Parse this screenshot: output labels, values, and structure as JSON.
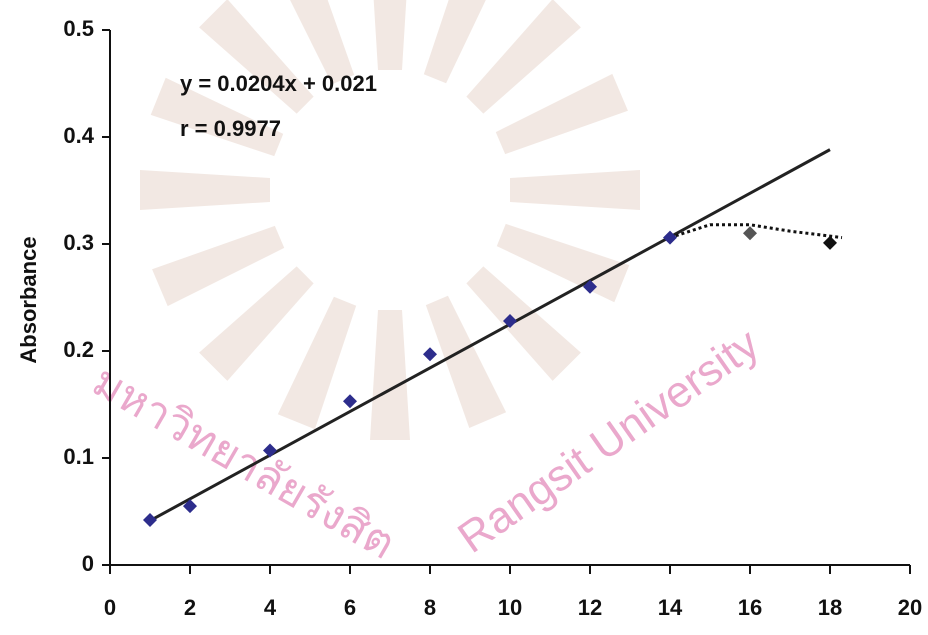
{
  "chart_data": {
    "type": "scatter",
    "y_label": "Absorbance",
    "annotations": [
      "y = 0.0204x + 0.021",
      "r = 0.9977"
    ],
    "watermark": [
      "มหาวิทยาลัยรังสิต",
      "Rangsit University"
    ],
    "x": [
      1,
      2,
      4,
      6,
      8,
      10,
      12,
      14,
      16,
      18
    ],
    "values": [
      0.042,
      0.055,
      0.107,
      0.153,
      0.197,
      0.228,
      0.26,
      0.306,
      0.31,
      0.301
    ],
    "colors": [
      "#2d2d8c",
      "#2d2d8c",
      "#2d2d8c",
      "#2d2d8c",
      "#2d2d8c",
      "#2d2d8c",
      "#2d2d8c",
      "#2d2d8c",
      "#555555",
      "#111111"
    ],
    "trendline": {
      "slope": 0.0204,
      "intercept": 0.021,
      "color": "#222222"
    },
    "curve": {
      "x": [
        14,
        15,
        16,
        17,
        18.3
      ],
      "values": [
        0.306,
        0.318,
        0.318,
        0.312,
        0.306
      ],
      "color": "#111111"
    },
    "xlim": [
      0,
      20
    ],
    "ylim": [
      0,
      0.5
    ],
    "xticks": [
      0,
      2,
      4,
      6,
      8,
      10,
      12,
      14,
      16,
      18,
      20
    ],
    "yticks": [
      0,
      0.1,
      0.2,
      0.3,
      0.4,
      0.5
    ]
  }
}
